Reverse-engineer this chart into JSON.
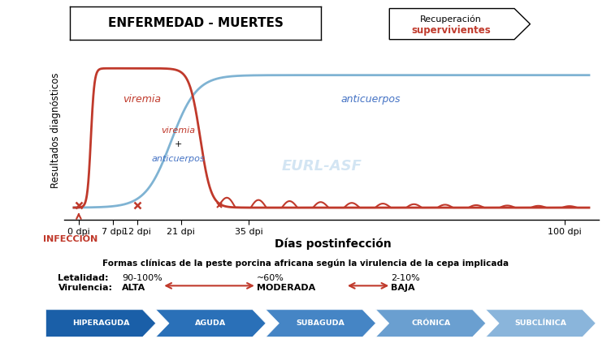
{
  "title_box": "ENFERMEDAD - MUERTES",
  "recovery_line1": "Recuperación",
  "recovery_line2": "supervivientes",
  "ylabel": "Resultados diagnósticos",
  "xlabel": "Días postinfección",
  "x_ticks": [
    0,
    7,
    12,
    21,
    35,
    100
  ],
  "x_tick_labels": [
    "0 dpi",
    "7 dpi",
    "12 dpi",
    "21 dpi",
    "35 dpi",
    "100 dpi"
  ],
  "viremia_label": "viremia",
  "antibody_label": "anticuerpos",
  "watermark": "EURL-ASF",
  "infeccion_label": "INFECCIÓN",
  "red_color": "#c0392b",
  "blue_color": "#4472c4",
  "light_blue": "#7fb3d3",
  "bottom_title": "Formas clínicas de la peste porcina africana según la virulencia de la cepa implicada",
  "lethality_label": "Letalidad:",
  "virulence_label": "Virulencia:",
  "lethality_values": [
    "90-100%",
    "~60%",
    "2-10%"
  ],
  "virulence_values": [
    "ALTA",
    "MODERADA",
    "BAJA"
  ],
  "arrow_labels": [
    "HIPERAGUDA",
    "AGUDA",
    "SUBAGUDA",
    "CRÓNICA",
    "SUBCLÍNICA"
  ],
  "bg_color": "#ffffff"
}
